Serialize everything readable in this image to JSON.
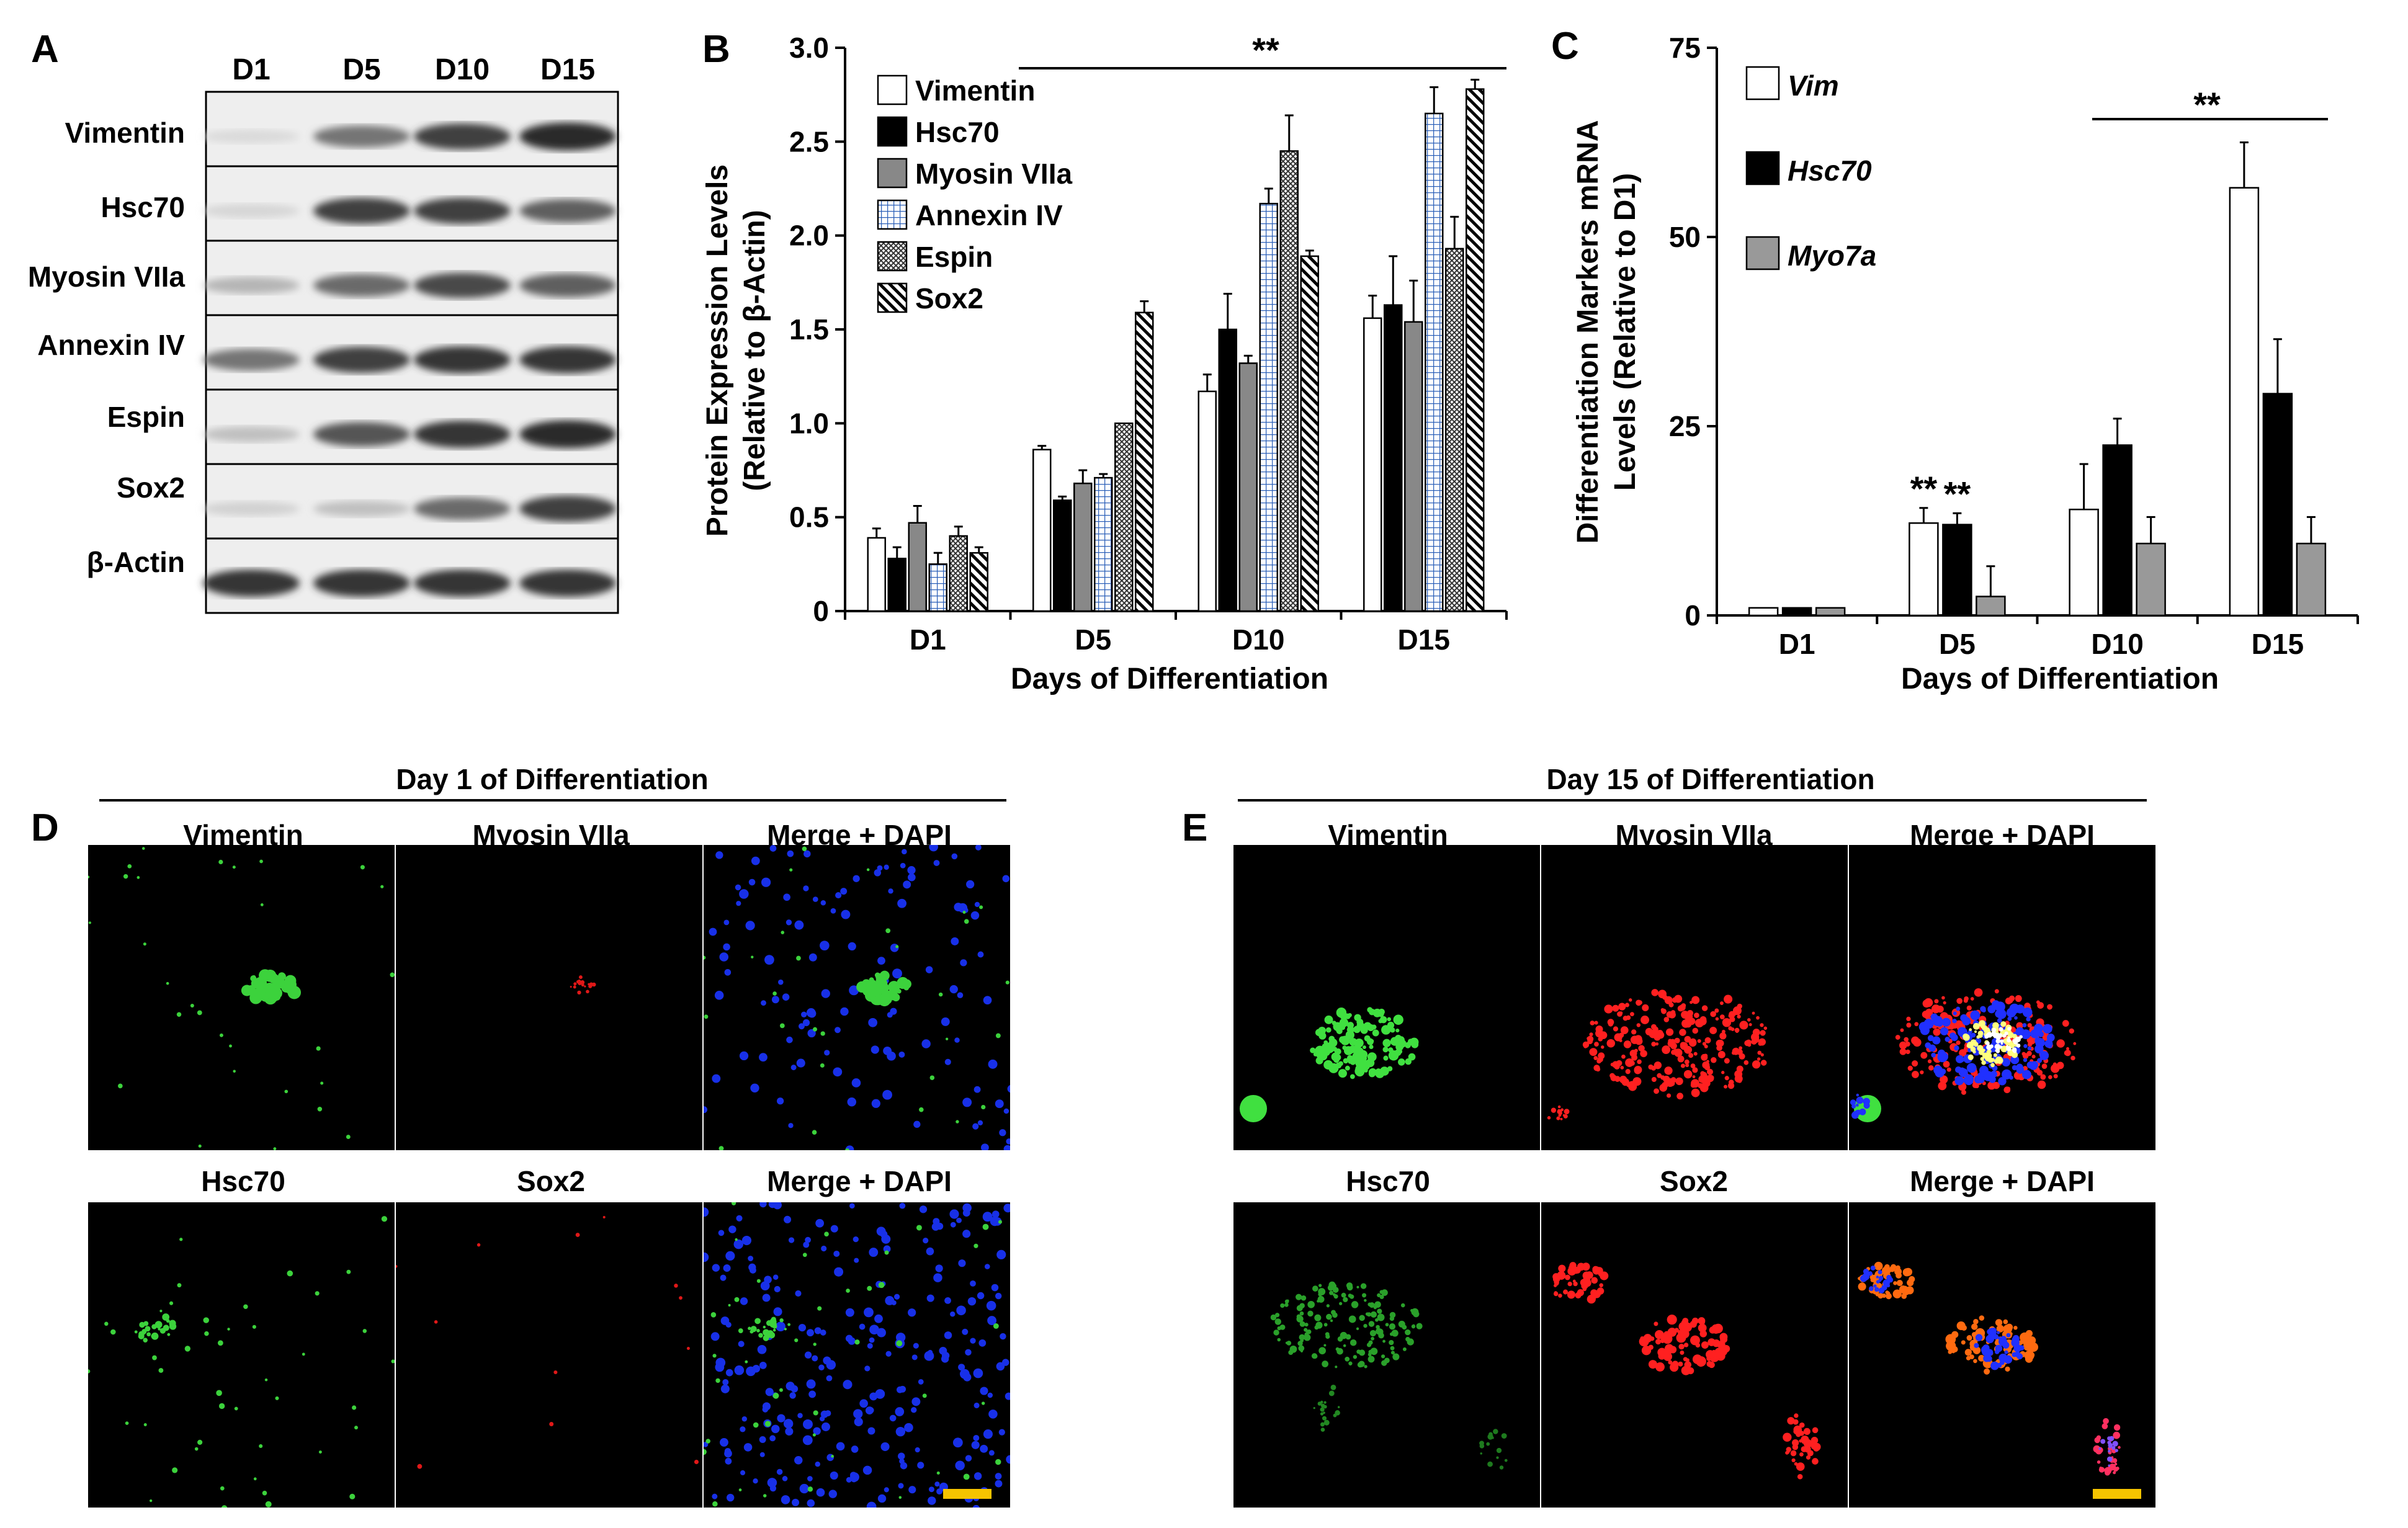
{
  "panel_letters": {
    "a": "A",
    "b": "B",
    "c": "C",
    "d": "D",
    "e": "E"
  },
  "blot": {
    "lanes": [
      "D1",
      "D5",
      "D10",
      "D15"
    ],
    "rows": [
      {
        "label": "Vimentin",
        "intensity": [
          0.08,
          0.55,
          0.8,
          0.9
        ]
      },
      {
        "label": "Hsc70",
        "intensity": [
          0.1,
          0.8,
          0.8,
          0.65
        ]
      },
      {
        "label": "Myosin VIIa",
        "intensity": [
          0.25,
          0.6,
          0.75,
          0.65
        ]
      },
      {
        "label": "Annexin IV",
        "intensity": [
          0.55,
          0.8,
          0.85,
          0.85
        ]
      },
      {
        "label": "Espin",
        "intensity": [
          0.2,
          0.7,
          0.85,
          0.9
        ]
      },
      {
        "label": "Sox2",
        "intensity": [
          0.12,
          0.2,
          0.6,
          0.8
        ]
      },
      {
        "label": "β-Actin",
        "intensity": [
          0.85,
          0.85,
          0.85,
          0.85
        ]
      }
    ]
  },
  "chart_data": [
    {
      "type": "bar",
      "panel": "B",
      "categories": [
        "D1",
        "D5",
        "D10",
        "D15"
      ],
      "xlabel": "Days of Differentiation",
      "ylabel": "Protein Expression Levels (Relative to β-Actin)",
      "ylabel_lines": [
        "Protein Expression Levels",
        "(Relative to β-Actin)"
      ],
      "ylim": [
        0,
        3.0
      ],
      "yticks": [
        "0",
        "0.5",
        "1.0",
        "1.5",
        "2.0",
        "2.5",
        "3.0"
      ],
      "legend_position": "top-left",
      "significance": "**",
      "series": [
        {
          "name": "Vimentin",
          "pattern": "white",
          "values": [
            0.39,
            0.86,
            1.17,
            1.56
          ],
          "errors": [
            0.05,
            0.02,
            0.09,
            0.12
          ]
        },
        {
          "name": "Hsc70",
          "pattern": "black",
          "values": [
            0.28,
            0.59,
            1.5,
            1.63
          ],
          "errors": [
            0.06,
            0.02,
            0.19,
            0.26
          ]
        },
        {
          "name": "Myosin VIIa",
          "pattern": "gray",
          "values": [
            0.47,
            0.68,
            1.32,
            1.54
          ],
          "errors": [
            0.09,
            0.07,
            0.04,
            0.22
          ]
        },
        {
          "name": "Annexin IV",
          "pattern": "grid",
          "values": [
            0.25,
            0.71,
            2.17,
            2.65
          ],
          "errors": [
            0.06,
            0.02,
            0.08,
            0.14
          ]
        },
        {
          "name": "Espin",
          "pattern": "cross",
          "values": [
            0.4,
            1.0,
            2.45,
            1.93
          ],
          "errors": [
            0.05,
            0.0,
            0.19,
            0.17
          ]
        },
        {
          "name": "Sox2",
          "pattern": "diag",
          "values": [
            0.31,
            1.59,
            1.89,
            2.78
          ],
          "errors": [
            0.03,
            0.06,
            0.03,
            0.05
          ]
        }
      ]
    },
    {
      "type": "bar",
      "panel": "C",
      "categories": [
        "D1",
        "D5",
        "D10",
        "D15"
      ],
      "xlabel": "Days of Differentiation",
      "ylabel": "Differentiation Markers mRNA Levels (Relative to D1)",
      "ylabel_lines": [
        "Differentiation Markers mRNA",
        "Levels (Relative to D1)"
      ],
      "ylim": [
        0,
        75
      ],
      "yticks": [
        "0",
        "25",
        "50",
        "75"
      ],
      "legend_position": "top-left",
      "significance": "**",
      "d5_stars": [
        "**",
        "**"
      ],
      "series": [
        {
          "name": "Vim",
          "color": "#ffffff",
          "values": [
            1,
            12.2,
            14.0,
            56.5
          ],
          "errors": [
            0,
            2.0,
            6.0,
            6.0
          ]
        },
        {
          "name": "Hsc70",
          "color": "#000000",
          "values": [
            1,
            12.0,
            22.5,
            29.3
          ],
          "errors": [
            0,
            1.5,
            3.5,
            7.2
          ]
        },
        {
          "name": "Myo7a",
          "color": "#999999",
          "values": [
            1,
            2.5,
            9.5,
            9.5
          ],
          "errors": [
            0,
            4.0,
            3.5,
            3.5
          ]
        }
      ]
    }
  ],
  "micro": {
    "d_title": "Day 1 of Differentiation",
    "e_title": "Day 15 of Differentiation",
    "top_labels": [
      "Vimentin",
      "Myosin VIIa",
      "Merge + DAPI"
    ],
    "bottom_labels": [
      "Hsc70",
      "Sox2",
      "Merge + DAPI"
    ],
    "scale_bar_color": "#f5c400"
  }
}
